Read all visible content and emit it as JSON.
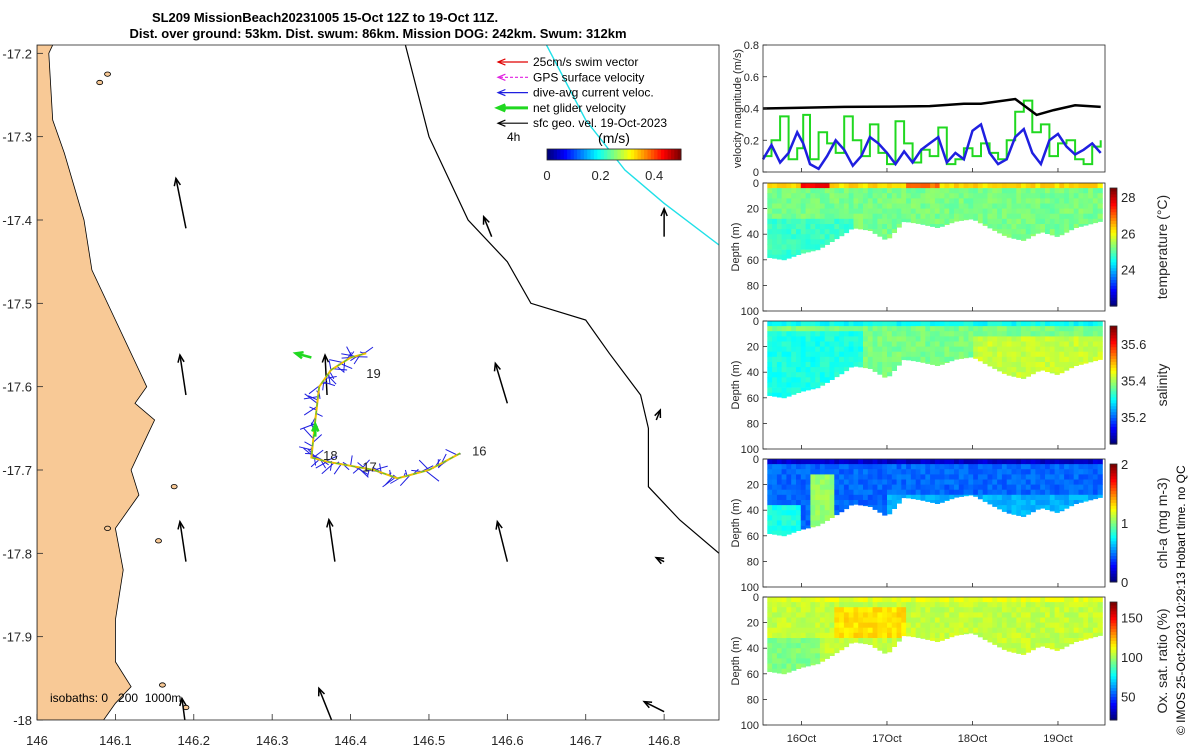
{
  "title": {
    "line1": "SL209 MissionBeach20231005 15-Oct 12Z to 19-Oct 11Z.",
    "line2": "Dist. over ground: 53km. Dist. swum: 86km. Mission DOG: 242km. Swum: 312km"
  },
  "credit": "© IMOS 25-Oct-2023 10:29:13 Hobart time. no QC",
  "colors": {
    "land": "#F8C996",
    "track": "#1f1fe0",
    "net": "#20d820",
    "sfc": "#000000",
    "swim": "#e00000",
    "gps": "#e020e0",
    "cyan": "#20e0e8"
  },
  "chart_data": [
    {
      "type": "map",
      "xlim": [
        146.0,
        146.87
      ],
      "ylim": [
        -18.0,
        -17.19
      ],
      "x_ticks": [
        "146",
        "146.1",
        "146.2",
        "146.3",
        "146.4",
        "146.5",
        "146.6",
        "146.7",
        "146.8"
      ],
      "x_tick_values": [
        146.0,
        146.1,
        146.2,
        146.3,
        146.4,
        146.5,
        146.6,
        146.7,
        146.8
      ],
      "y_ticks": [
        "-17.2",
        "-17.3",
        "-17.4",
        "-17.5",
        "-17.6",
        "-17.7",
        "-17.8",
        "-17.9",
        "-18"
      ],
      "y_tick_values": [
        -17.2,
        -17.3,
        -17.4,
        -17.5,
        -17.6,
        -17.7,
        -17.8,
        -17.9,
        -18.0
      ],
      "legend": [
        {
          "label": "25cm/s swim vector",
          "color": "#e00000",
          "style": "arrow"
        },
        {
          "label": "GPS surface velocity",
          "color": "#e020e0",
          "style": "dash-arrow"
        },
        {
          "label": "dive-avg current veloc.",
          "color": "#1f1fe0",
          "style": "arrow"
        },
        {
          "label": "net glider velocity",
          "color": "#20d820",
          "style": "thick-arrow"
        },
        {
          "label": "sfc geo. vel. 19-Oct-2023",
          "color": "#000000",
          "style": "arrow"
        }
      ],
      "legend_note": "4h",
      "colorbar": {
        "label": "(m/s)",
        "ticks": [
          "0",
          "0.2",
          "0.4"
        ],
        "tick_values": [
          0,
          0.2,
          0.4
        ],
        "range": [
          0,
          0.5
        ]
      },
      "isobaths_label": "isobaths: 0   200  1000m",
      "day_labels": [
        {
          "text": "19",
          "lon": 146.42,
          "lat": -17.585
        },
        {
          "text": "18",
          "lon": 146.365,
          "lat": -17.683
        },
        {
          "text": "17",
          "lon": 146.415,
          "lat": -17.697
        },
        {
          "text": "16",
          "lon": 146.555,
          "lat": -17.678
        }
      ],
      "coast_lonlat": [
        [
          146.02,
          -17.19
        ],
        [
          146.015,
          -17.2
        ],
        [
          146.02,
          -17.28
        ],
        [
          146.035,
          -17.32
        ],
        [
          146.06,
          -17.4
        ],
        [
          146.07,
          -17.46
        ],
        [
          146.1,
          -17.52
        ],
        [
          146.13,
          -17.58
        ],
        [
          146.14,
          -17.6
        ],
        [
          146.125,
          -17.62
        ],
        [
          146.15,
          -17.64
        ],
        [
          146.14,
          -17.66
        ],
        [
          146.12,
          -17.7
        ],
        [
          146.13,
          -17.73
        ],
        [
          146.1,
          -17.77
        ],
        [
          146.11,
          -17.82
        ],
        [
          146.1,
          -17.88
        ],
        [
          146.1,
          -17.93
        ],
        [
          146.12,
          -17.96
        ],
        [
          146.1,
          -17.98
        ],
        [
          146.085,
          -18.0
        ]
      ],
      "islands_lonlat": [
        [
          146.175,
          -17.72
        ],
        [
          146.155,
          -17.785
        ],
        [
          146.09,
          -17.77
        ],
        [
          146.16,
          -17.958
        ],
        [
          146.19,
          -17.985
        ],
        [
          146.08,
          -17.235
        ],
        [
          146.09,
          -17.225
        ]
      ],
      "isobath_200": [
        [
          146.47,
          -17.19
        ],
        [
          146.5,
          -17.3
        ],
        [
          146.55,
          -17.4
        ],
        [
          146.6,
          -17.45
        ],
        [
          146.63,
          -17.5
        ],
        [
          146.7,
          -17.52
        ],
        [
          146.73,
          -17.56
        ],
        [
          146.77,
          -17.61
        ],
        [
          146.78,
          -17.65
        ],
        [
          146.78,
          -17.72
        ],
        [
          146.82,
          -17.76
        ],
        [
          146.87,
          -17.8
        ]
      ],
      "cyan_line": [
        [
          146.65,
          -17.19
        ],
        [
          146.7,
          -17.28
        ],
        [
          146.75,
          -17.34
        ],
        [
          146.8,
          -17.38
        ],
        [
          146.87,
          -17.43
        ]
      ],
      "current_arrows": [
        {
          "lon": 146.19,
          "lat": -17.41,
          "u": -0.05,
          "v": 0.25
        },
        {
          "lon": 146.58,
          "lat": -17.42,
          "u": -0.04,
          "v": 0.1
        },
        {
          "lon": 146.8,
          "lat": -17.42,
          "u": 0.0,
          "v": 0.14
        },
        {
          "lon": 146.19,
          "lat": -17.61,
          "u": -0.03,
          "v": 0.2
        },
        {
          "lon": 146.37,
          "lat": -17.61,
          "u": -0.01,
          "v": 0.2
        },
        {
          "lon": 146.6,
          "lat": -17.62,
          "u": -0.06,
          "v": 0.2
        },
        {
          "lon": 146.79,
          "lat": -17.64,
          "u": 0.02,
          "v": 0.05
        },
        {
          "lon": 146.19,
          "lat": -17.81,
          "u": -0.03,
          "v": 0.2
        },
        {
          "lon": 146.38,
          "lat": -17.81,
          "u": -0.03,
          "v": 0.21
        },
        {
          "lon": 146.6,
          "lat": -17.81,
          "u": -0.05,
          "v": 0.2
        },
        {
          "lon": 146.8,
          "lat": -17.81,
          "u": -0.04,
          "v": 0.02
        },
        {
          "lon": 146.19,
          "lat": -18.01,
          "u": -0.02,
          "v": 0.15
        },
        {
          "lon": 146.38,
          "lat": -18.01,
          "u": -0.08,
          "v": 0.2
        },
        {
          "lon": 146.8,
          "lat": -17.99,
          "u": -0.1,
          "v": 0.05
        }
      ],
      "glider_track": [
        [
          146.54,
          -17.68
        ],
        [
          146.5,
          -17.7
        ],
        [
          146.46,
          -17.71
        ],
        [
          146.43,
          -17.7
        ],
        [
          146.4,
          -17.695
        ],
        [
          146.37,
          -17.69
        ],
        [
          146.35,
          -17.685
        ],
        [
          146.355,
          -17.64
        ],
        [
          146.36,
          -17.6
        ],
        [
          146.375,
          -17.58
        ],
        [
          146.4,
          -17.565
        ],
        [
          146.42,
          -17.56
        ]
      ]
    },
    {
      "type": "line",
      "ylabel": "velocity magnitude (m/s)",
      "ylim": [
        0,
        0.8
      ],
      "y_ticks": [
        "0",
        "0.2",
        "0.4",
        "0.6",
        "0.8"
      ],
      "y_tick_values": [
        0,
        0.2,
        0.4,
        0.6,
        0.8
      ],
      "xlim": [
        15.55,
        19.55
      ],
      "series": [
        {
          "name": "black",
          "color": "#000000",
          "x": [
            15.55,
            16.0,
            16.5,
            17.0,
            17.5,
            17.9,
            18.1,
            18.5,
            18.75,
            18.95,
            19.2,
            19.5
          ],
          "values": [
            0.4,
            0.405,
            0.41,
            0.412,
            0.415,
            0.43,
            0.43,
            0.46,
            0.36,
            0.39,
            0.42,
            0.41
          ]
        },
        {
          "name": "blue",
          "color": "#1f1fe0",
          "x": [
            15.55,
            15.65,
            15.75,
            15.85,
            15.95,
            16.02,
            16.1,
            16.2,
            16.3,
            16.4,
            16.5,
            16.6,
            16.7,
            16.8,
            16.9,
            17.0,
            17.1,
            17.2,
            17.3,
            17.4,
            17.5,
            17.6,
            17.7,
            17.8,
            17.9,
            18.0,
            18.1,
            18.2,
            18.3,
            18.4,
            18.5,
            18.6,
            18.7,
            18.8,
            18.9,
            19.0,
            19.1,
            19.2,
            19.3,
            19.4,
            19.5
          ],
          "values": [
            0.08,
            0.17,
            0.06,
            0.12,
            0.25,
            0.18,
            0.05,
            0.02,
            0.1,
            0.2,
            0.14,
            0.04,
            0.1,
            0.22,
            0.18,
            0.12,
            0.05,
            0.13,
            0.06,
            0.14,
            0.18,
            0.22,
            0.06,
            0.12,
            0.08,
            0.26,
            0.3,
            0.12,
            0.05,
            0.08,
            0.22,
            0.27,
            0.12,
            0.05,
            0.2,
            0.24,
            0.16,
            0.11,
            0.14,
            0.18,
            0.12
          ]
        },
        {
          "name": "green",
          "color": "#20d820",
          "x": [
            15.55,
            15.65,
            15.75,
            15.85,
            15.95,
            16.02,
            16.1,
            16.2,
            16.3,
            16.4,
            16.5,
            16.6,
            16.7,
            16.8,
            16.9,
            17.0,
            17.1,
            17.2,
            17.3,
            17.4,
            17.5,
            17.6,
            17.7,
            17.8,
            17.9,
            18.0,
            18.1,
            18.2,
            18.3,
            18.4,
            18.5,
            18.6,
            18.7,
            18.8,
            18.9,
            19.0,
            19.1,
            19.2,
            19.3,
            19.4,
            19.5
          ],
          "values": [
            0.1,
            0.2,
            0.35,
            0.08,
            0.15,
            0.36,
            0.08,
            0.25,
            0.18,
            0.12,
            0.35,
            0.2,
            0.1,
            0.3,
            0.12,
            0.05,
            0.32,
            0.18,
            0.06,
            0.14,
            0.1,
            0.28,
            0.05,
            0.08,
            0.15,
            0.1,
            0.18,
            0.12,
            0.08,
            0.2,
            0.38,
            0.45,
            0.25,
            0.3,
            0.1,
            0.18,
            0.2,
            0.08,
            0.05,
            0.16,
            0.2
          ]
        }
      ]
    },
    {
      "type": "heatmap",
      "variable": "temperature",
      "cbar_label": "temperature (°C)",
      "clim": [
        22.0,
        28.5
      ],
      "cbar_ticks": [
        "24",
        "26",
        "28"
      ],
      "cbar_tick_values": [
        24,
        26,
        28
      ],
      "ylabel": "Depth (m)",
      "y_ticks": [
        "0",
        "20",
        "40",
        "60",
        "80",
        "100"
      ],
      "y_tick_values": [
        0,
        20,
        40,
        60,
        80,
        100
      ],
      "base_value": 25.2,
      "surface_value": 26.3,
      "patches": [
        {
          "x0": 16.0,
          "x1": 16.3,
          "d0": 0,
          "d1": 2,
          "v": 27.8
        },
        {
          "x0": 17.2,
          "x1": 17.6,
          "d0": 0,
          "d1": 3,
          "v": 27.0
        },
        {
          "x0": 15.6,
          "x1": 16.6,
          "d0": 28,
          "d1": 60,
          "v": 24.8
        }
      ]
    },
    {
      "type": "heatmap",
      "variable": "salinity",
      "cbar_label": "salinity",
      "clim": [
        35.05,
        35.7
      ],
      "cbar_ticks": [
        "35.2",
        "35.4",
        "35.6"
      ],
      "cbar_tick_values": [
        35.2,
        35.4,
        35.6
      ],
      "ylabel": "Depth (m)",
      "y_ticks": [
        "0",
        "20",
        "40",
        "60",
        "80",
        "100"
      ],
      "y_tick_values": [
        0,
        20,
        40,
        60,
        80,
        100
      ],
      "base_value": 35.37,
      "surface_value": 35.3,
      "patches": [
        {
          "x0": 15.6,
          "x1": 16.7,
          "d0": 5,
          "d1": 60,
          "v": 35.31
        },
        {
          "x0": 18.0,
          "x1": 19.5,
          "d0": 10,
          "d1": 45,
          "v": 35.42
        }
      ]
    },
    {
      "type": "heatmap",
      "variable": "chl-a",
      "cbar_label": "chl-a (mg m-3)",
      "clim": [
        0,
        2
      ],
      "cbar_ticks": [
        "0",
        "1",
        "2"
      ],
      "cbar_tick_values": [
        0,
        1,
        2
      ],
      "ylabel": "Depth (m)",
      "y_ticks": [
        "0",
        "20",
        "40",
        "60",
        "80",
        "100"
      ],
      "y_tick_values": [
        0,
        20,
        40,
        60,
        80,
        100
      ],
      "base_value": 0.45,
      "surface_value": 0.15,
      "patches": [
        {
          "x0": 16.1,
          "x1": 16.4,
          "d0": 10,
          "d1": 55,
          "v": 1.05
        },
        {
          "x0": 15.6,
          "x1": 16.0,
          "d0": 35,
          "d1": 60,
          "v": 0.8
        },
        {
          "x0": 17.0,
          "x1": 19.5,
          "d0": 25,
          "d1": 45,
          "v": 0.6
        }
      ]
    },
    {
      "type": "heatmap",
      "variable": "oxygen",
      "cbar_label": "Ox. sat. ratio (%)",
      "clim": [
        20,
        170
      ],
      "cbar_ticks": [
        "50",
        "100",
        "150"
      ],
      "cbar_tick_values": [
        50,
        100,
        150
      ],
      "ylabel": "Depth (m)",
      "y_ticks": [
        "0",
        "20",
        "40",
        "60",
        "80",
        "100"
      ],
      "y_tick_values": [
        0,
        20,
        40,
        60,
        80,
        100
      ],
      "base_value": 105,
      "surface_value": 110,
      "patches": [
        {
          "x0": 16.4,
          "x1": 17.2,
          "d0": 5,
          "d1": 30,
          "v": 118
        },
        {
          "x0": 15.6,
          "x1": 16.2,
          "d0": 30,
          "d1": 60,
          "v": 95
        }
      ]
    }
  ],
  "shared_x": {
    "ticks": [
      "16Oct",
      "17Oct",
      "18Oct",
      "19Oct"
    ],
    "tick_values": [
      16,
      17,
      18,
      19
    ],
    "xlim": [
      15.55,
      19.55
    ]
  },
  "mixed_layer_depth": {
    "x": [
      15.6,
      15.8,
      16.0,
      16.2,
      16.3,
      16.5,
      16.6,
      16.8,
      17.0,
      17.2,
      17.4,
      17.6,
      17.8,
      18.0,
      18.2,
      18.4,
      18.6,
      18.8,
      19.0,
      19.2,
      19.5
    ],
    "d": [
      58,
      60,
      55,
      52,
      48,
      40,
      35,
      37,
      45,
      30,
      32,
      35,
      30,
      28,
      35,
      42,
      45,
      38,
      42,
      35,
      30
    ]
  }
}
